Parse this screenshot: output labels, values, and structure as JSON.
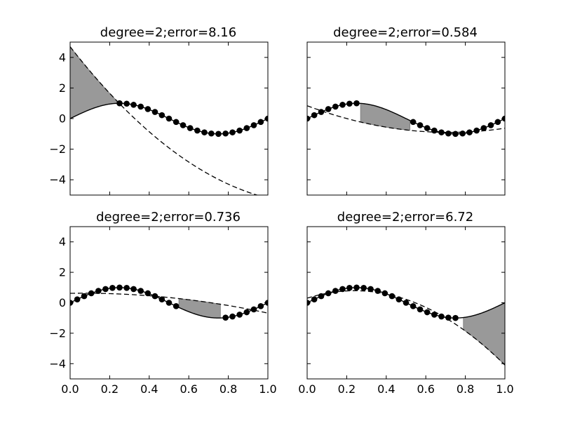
{
  "figure": {
    "background": "#ffffff"
  },
  "chart_data": [
    {
      "type": "line",
      "title": "degree=2;error=8.16",
      "xlabel": "",
      "ylabel": "",
      "xlim": [
        0,
        1
      ],
      "ylim": [
        -5,
        5
      ],
      "xticks": [
        0.0,
        0.2,
        0.4,
        0.6,
        0.8,
        1.0
      ],
      "xtick_labels": [
        "0.0",
        "0.2",
        "0.4",
        "0.6",
        "0.8",
        "1.0"
      ],
      "yticks": [
        4,
        2,
        0,
        -2,
        -4
      ],
      "ytick_labels": [
        "4",
        "2",
        "0",
        "−2",
        "−4"
      ],
      "grid": false,
      "show_x_tick_labels": false,
      "show_y_tick_labels": true,
      "removed_range": [
        0.0,
        0.24
      ],
      "fit_poly": [
        4.7,
        -16.57,
        6.67
      ],
      "error": 8.16,
      "series": [
        {
          "kind": "data-points",
          "x": [
            0.25,
            0.286,
            0.321,
            0.357,
            0.393,
            0.429,
            0.464,
            0.5,
            0.536,
            0.571,
            0.607,
            0.643,
            0.679,
            0.714,
            0.75,
            0.786,
            0.821,
            0.857,
            0.893,
            0.929,
            0.964,
            1.0
          ],
          "y": [
            1.0,
            0.975,
            0.901,
            0.782,
            0.623,
            0.434,
            0.223,
            0.0,
            -0.223,
            -0.434,
            -0.623,
            -0.782,
            -0.901,
            -0.975,
            -1.0,
            -0.975,
            -0.901,
            -0.782,
            -0.623,
            -0.434,
            -0.223,
            0.0
          ]
        }
      ],
      "curves": [
        {
          "kind": "true-function",
          "formula": "sin(2πx)"
        },
        {
          "kind": "polynomial-fit",
          "coefficients": [
            4.7,
            -16.57,
            6.67
          ]
        }
      ]
    },
    {
      "type": "line",
      "title": "degree=2;error=0.584",
      "xlabel": "",
      "ylabel": "",
      "xlim": [
        0,
        1
      ],
      "ylim": [
        -5,
        5
      ],
      "xticks": [
        0.0,
        0.2,
        0.4,
        0.6,
        0.8,
        1.0
      ],
      "xtick_labels": [
        "0.0",
        "0.2",
        "0.4",
        "0.6",
        "0.8",
        "1.0"
      ],
      "yticks": [
        4,
        2,
        0,
        -2,
        -4
      ],
      "ytick_labels": [
        "4",
        "2",
        "0",
        "−2",
        "−4"
      ],
      "grid": false,
      "show_x_tick_labels": false,
      "show_y_tick_labels": false,
      "removed_range": [
        0.27,
        0.52
      ],
      "fit_poly": [
        0.84,
        -4.86,
        3.39
      ],
      "error": 0.584,
      "series": [
        {
          "kind": "data-points",
          "x": [
            0.0,
            0.036,
            0.071,
            0.107,
            0.143,
            0.179,
            0.214,
            0.25,
            0.536,
            0.571,
            0.607,
            0.643,
            0.679,
            0.714,
            0.75,
            0.786,
            0.821,
            0.857,
            0.893,
            0.929,
            0.964,
            1.0
          ],
          "y": [
            0.0,
            0.223,
            0.434,
            0.623,
            0.782,
            0.901,
            0.975,
            1.0,
            -0.223,
            -0.434,
            -0.623,
            -0.782,
            -0.901,
            -0.975,
            -1.0,
            -0.975,
            -0.901,
            -0.782,
            -0.623,
            -0.434,
            -0.223,
            0.0
          ]
        }
      ],
      "curves": [
        {
          "kind": "true-function",
          "formula": "sin(2πx)"
        },
        {
          "kind": "polynomial-fit",
          "coefficients": [
            0.84,
            -4.86,
            3.39
          ]
        }
      ]
    },
    {
      "type": "line",
      "title": "degree=2;error=0.736",
      "xlabel": "",
      "ylabel": "",
      "xlim": [
        0,
        1
      ],
      "ylim": [
        -5,
        5
      ],
      "xticks": [
        0.0,
        0.2,
        0.4,
        0.6,
        0.8,
        1.0
      ],
      "xtick_labels": [
        "0.0",
        "0.2",
        "0.4",
        "0.6",
        "0.8",
        "1.0"
      ],
      "yticks": [
        4,
        2,
        0,
        -2,
        -4
      ],
      "ytick_labels": [
        "4",
        "2",
        "0",
        "−2",
        "−4"
      ],
      "grid": false,
      "show_x_tick_labels": true,
      "show_y_tick_labels": true,
      "removed_range": [
        0.55,
        0.76
      ],
      "fit_poly": [
        0.62,
        0.2,
        -1.5
      ],
      "error": 0.736,
      "series": [
        {
          "kind": "data-points",
          "x": [
            0.0,
            0.036,
            0.071,
            0.107,
            0.143,
            0.179,
            0.214,
            0.25,
            0.286,
            0.321,
            0.357,
            0.393,
            0.429,
            0.464,
            0.5,
            0.536,
            0.786,
            0.821,
            0.857,
            0.893,
            0.929,
            0.964,
            1.0
          ],
          "y": [
            0.0,
            0.223,
            0.434,
            0.623,
            0.782,
            0.901,
            0.975,
            1.0,
            0.975,
            0.901,
            0.782,
            0.623,
            0.434,
            0.223,
            0.0,
            -0.223,
            -0.975,
            -0.901,
            -0.782,
            -0.623,
            -0.434,
            -0.223,
            0.0
          ]
        }
      ],
      "curves": [
        {
          "kind": "true-function",
          "formula": "sin(2πx)"
        },
        {
          "kind": "polynomial-fit",
          "coefficients": [
            0.62,
            0.2,
            -1.5
          ]
        }
      ]
    },
    {
      "type": "line",
      "title": "degree=2;error=6.72",
      "xlabel": "",
      "ylabel": "",
      "xlim": [
        0,
        1
      ],
      "ylim": [
        -5,
        5
      ],
      "xticks": [
        0.0,
        0.2,
        0.4,
        0.6,
        0.8,
        1.0
      ],
      "xtick_labels": [
        "0.0",
        "0.2",
        "0.4",
        "0.6",
        "0.8",
        "1.0"
      ],
      "yticks": [
        4,
        2,
        0,
        -2,
        -4
      ],
      "ytick_labels": [
        "4",
        "2",
        "0",
        "−2",
        "−4"
      ],
      "grid": false,
      "show_x_tick_labels": true,
      "show_y_tick_labels": false,
      "removed_range": [
        0.79,
        1.0
      ],
      "fit_poly": [
        0.3,
        4.08,
        -8.47
      ],
      "error": 6.72,
      "series": [
        {
          "kind": "data-points",
          "x": [
            0.0,
            0.036,
            0.071,
            0.107,
            0.143,
            0.179,
            0.214,
            0.25,
            0.286,
            0.321,
            0.357,
            0.393,
            0.429,
            0.464,
            0.5,
            0.536,
            0.571,
            0.607,
            0.643,
            0.679,
            0.714,
            0.75
          ],
          "y": [
            0.0,
            0.223,
            0.434,
            0.623,
            0.782,
            0.901,
            0.975,
            1.0,
            0.975,
            0.901,
            0.782,
            0.623,
            0.434,
            0.223,
            0.0,
            -0.223,
            -0.434,
            -0.623,
            -0.782,
            -0.901,
            -0.975,
            -1.0
          ]
        }
      ],
      "curves": [
        {
          "kind": "true-function",
          "formula": "sin(2πx)"
        },
        {
          "kind": "polynomial-fit",
          "coefficients": [
            0.3,
            4.08,
            -8.47
          ]
        }
      ]
    }
  ],
  "style": {
    "data_point_color": "#000000",
    "true_curve_color": "#000000",
    "fit_curve_color": "#000000",
    "fill_color": "#999999",
    "fill_edge_color": "#777777",
    "axes_color": "#000000"
  }
}
